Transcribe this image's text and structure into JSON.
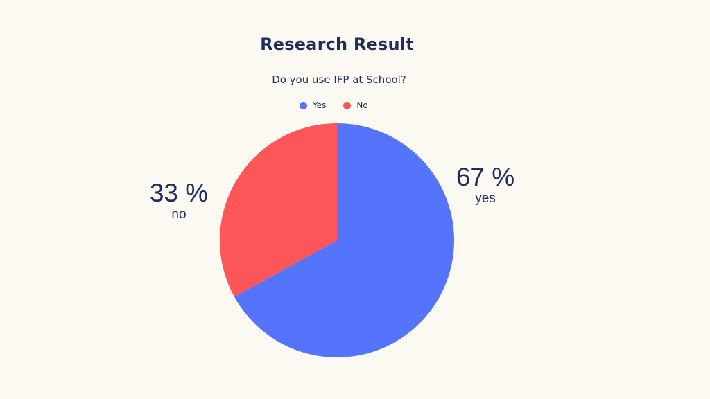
{
  "chart_data": {
    "type": "pie",
    "title": "Research Result",
    "subtitle": "Do you use IFP at School?",
    "legend": {
      "placement": "top-center",
      "entries": [
        {
          "label": "Yes",
          "color": "#5474fc"
        },
        {
          "label": "No",
          "color": "#fd5658"
        }
      ]
    },
    "slices": [
      {
        "label": "Yes",
        "value": 67,
        "color": "#5474fc",
        "value_label": "67 %",
        "text_label": "yes"
      },
      {
        "label": "No",
        "value": 33,
        "color": "#fd5658",
        "value_label": "33 %",
        "text_label": "no"
      }
    ]
  }
}
